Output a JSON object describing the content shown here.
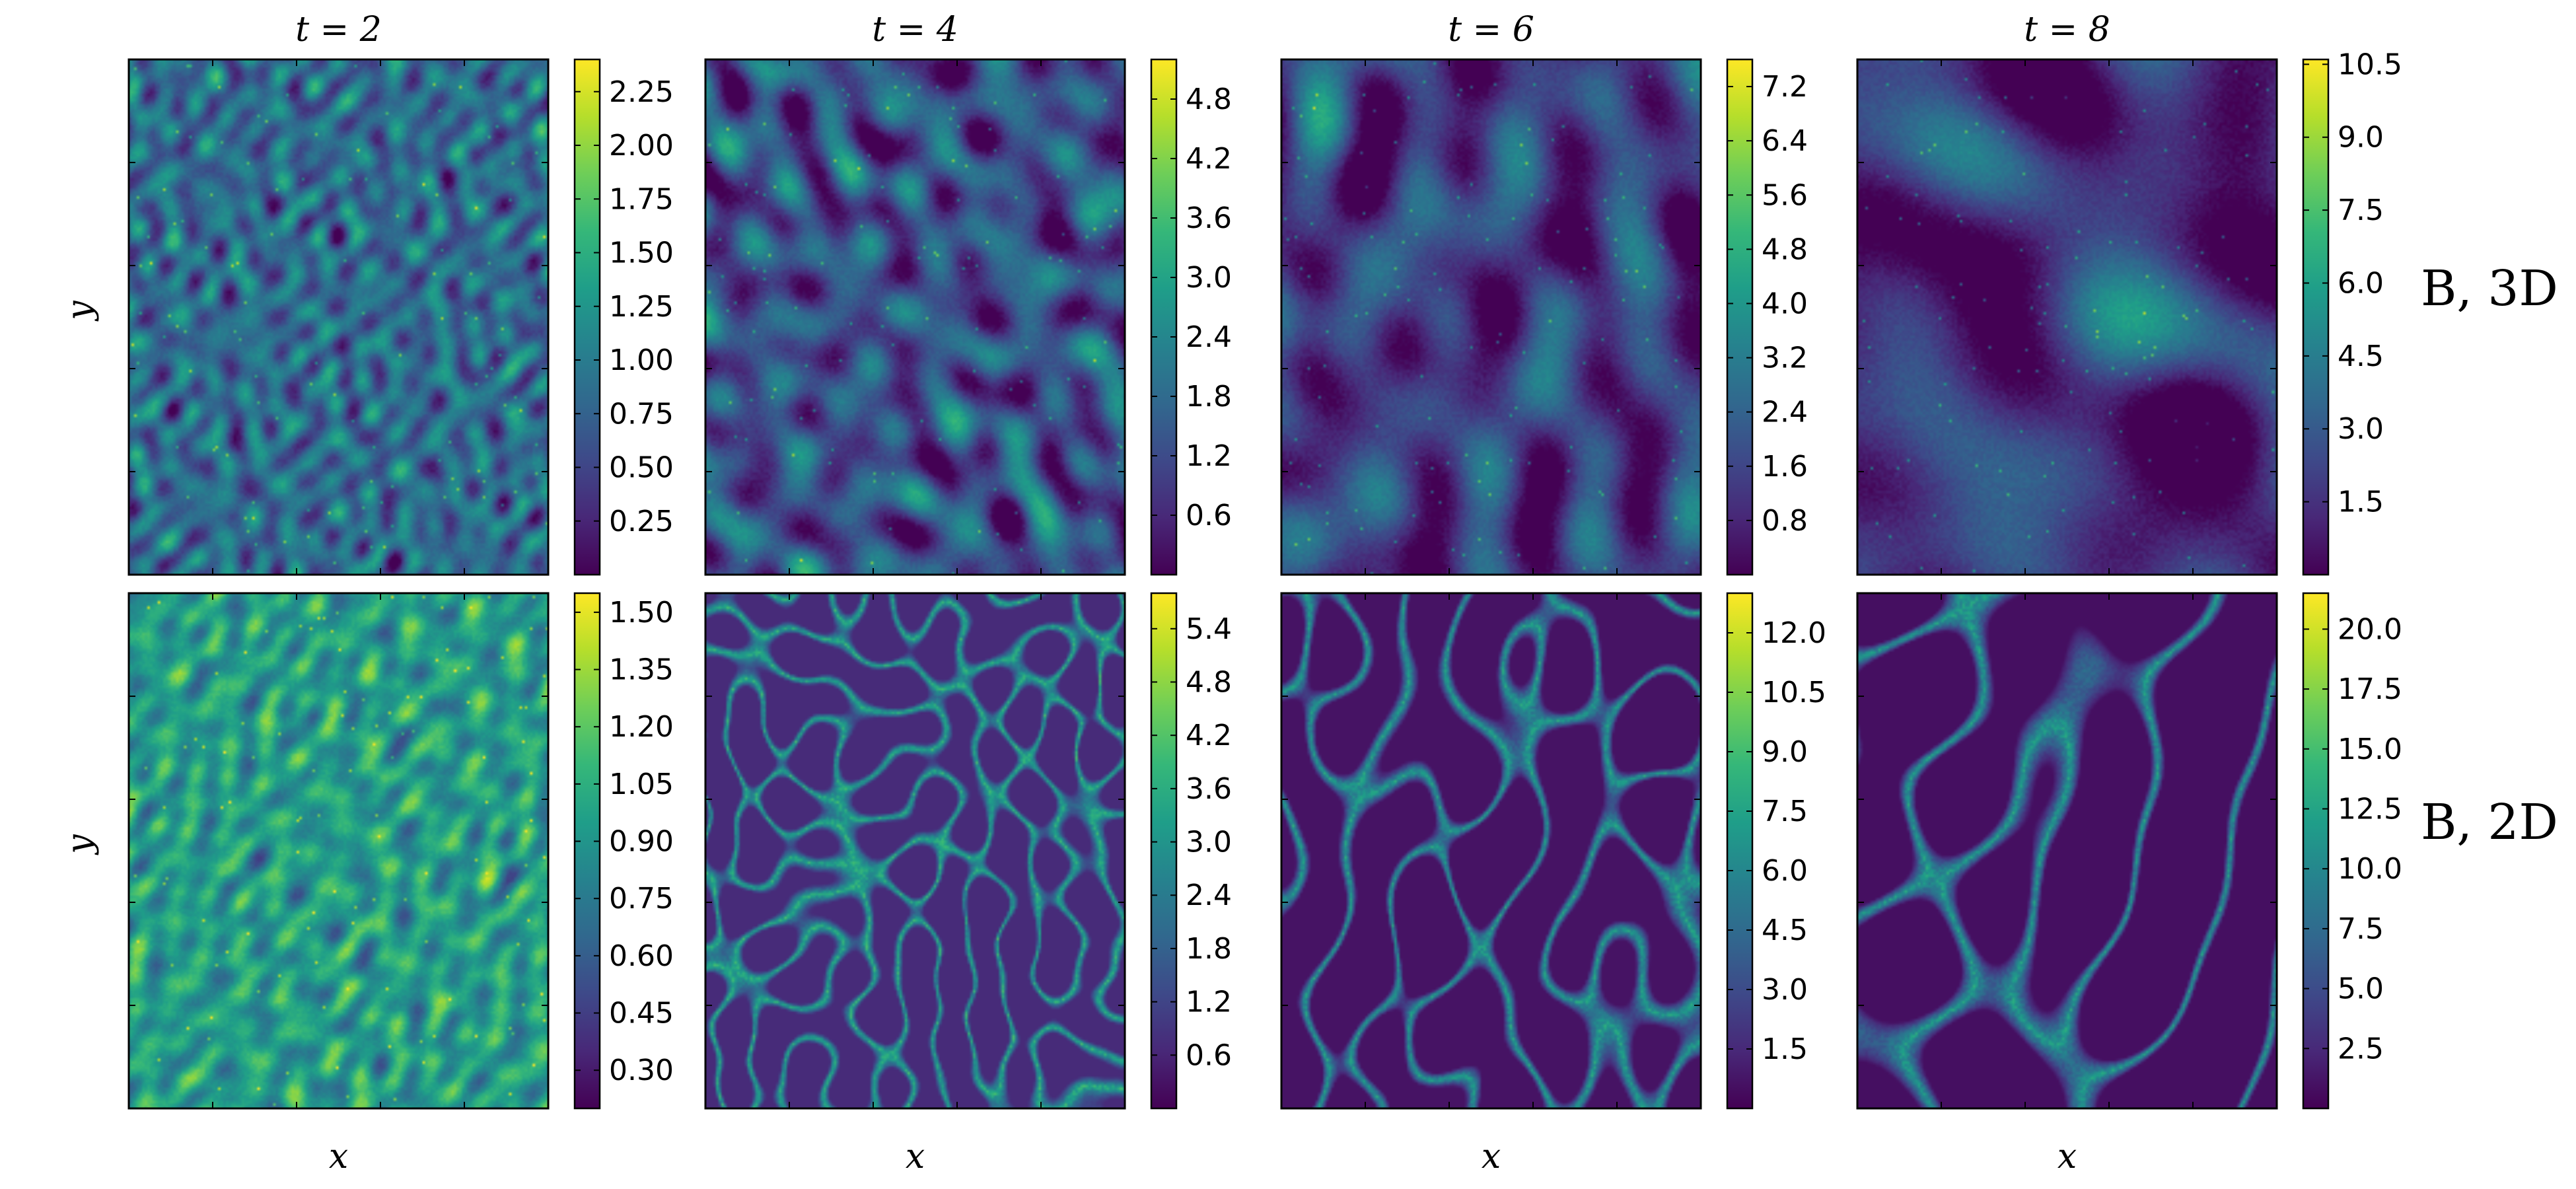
{
  "chart_data": {
    "type": "heatmap",
    "description_free": true,
    "colormap": "viridis",
    "colormap_stops": [
      "#440154",
      "#482878",
      "#3e4989",
      "#31688e",
      "#26828e",
      "#1f9e89",
      "#35b779",
      "#6ece58",
      "#b5de2b",
      "#fde725"
    ],
    "columns": [
      {
        "title": "t = 2",
        "time": 2
      },
      {
        "title": "t = 4",
        "time": 4
      },
      {
        "title": "t = 6",
        "time": 6
      },
      {
        "title": "t = 8",
        "time": 8
      }
    ],
    "rows": [
      {
        "label": "B, 3D",
        "ylabel": "y",
        "xlabel": "x"
      },
      {
        "label": "B, 2D",
        "ylabel": "y",
        "xlabel": "x"
      }
    ],
    "panels": [
      {
        "row": 0,
        "col": 0,
        "pattern": "fine",
        "mean": 0.35,
        "spread": 0.16,
        "colorbar": {
          "ticks": [
            "0.25",
            "0.50",
            "0.75",
            "1.00",
            "1.25",
            "1.50",
            "1.75",
            "2.00",
            "2.25"
          ],
          "min": 0.0,
          "max": 2.4
        }
      },
      {
        "row": 0,
        "col": 1,
        "pattern": "turbulent",
        "mean": 0.25,
        "spread": 0.2,
        "colorbar": {
          "ticks": [
            "0.6",
            "1.2",
            "1.8",
            "2.4",
            "3.0",
            "3.6",
            "4.2",
            "4.8"
          ],
          "min": 0.0,
          "max": 5.2
        }
      },
      {
        "row": 0,
        "col": 2,
        "pattern": "turbulent-coarse",
        "mean": 0.18,
        "spread": 0.2,
        "colorbar": {
          "ticks": [
            "0.8",
            "1.6",
            "2.4",
            "3.2",
            "4.0",
            "4.8",
            "5.6",
            "6.4",
            "7.2"
          ],
          "min": 0.0,
          "max": 7.6
        }
      },
      {
        "row": 0,
        "col": 3,
        "pattern": "turbulent-large",
        "mean": 0.15,
        "spread": 0.2,
        "colorbar": {
          "ticks": [
            "1.5",
            "3.0",
            "4.5",
            "6.0",
            "7.5",
            "9.0",
            "10.5"
          ],
          "min": 0.0,
          "max": 10.6
        }
      },
      {
        "row": 1,
        "col": 0,
        "pattern": "fine-2d",
        "mean": 0.55,
        "spread": 0.15,
        "colorbar": {
          "ticks": [
            "0.30",
            "0.45",
            "0.60",
            "0.75",
            "0.90",
            "1.05",
            "1.20",
            "1.35",
            "1.50"
          ],
          "min": 0.2,
          "max": 1.55
        }
      },
      {
        "row": 1,
        "col": 1,
        "pattern": "cells",
        "mean": 0.12,
        "spread": 0.25,
        "colorbar": {
          "ticks": [
            "0.6",
            "1.2",
            "1.8",
            "2.4",
            "3.0",
            "3.6",
            "4.2",
            "4.8",
            "5.4"
          ],
          "min": 0.0,
          "max": 5.8
        }
      },
      {
        "row": 1,
        "col": 2,
        "pattern": "domains",
        "mean": 0.05,
        "spread": 0.25,
        "colorbar": {
          "ticks": [
            "1.5",
            "3.0",
            "4.5",
            "6.0",
            "7.5",
            "9.0",
            "10.5",
            "12.0"
          ],
          "min": 0.0,
          "max": 13.0
        }
      },
      {
        "row": 1,
        "col": 3,
        "pattern": "domains-large",
        "mean": 0.04,
        "spread": 0.25,
        "colorbar": {
          "ticks": [
            "2.5",
            "5.0",
            "7.5",
            "10.0",
            "12.5",
            "15.0",
            "17.5",
            "20.0"
          ],
          "min": 0.0,
          "max": 21.5
        }
      }
    ]
  }
}
